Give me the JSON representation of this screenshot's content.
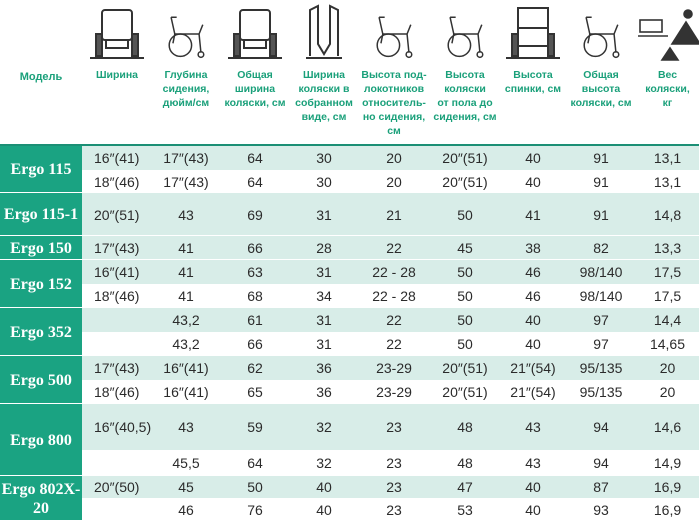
{
  "headers": [
    {
      "key": "model",
      "label": "Модель"
    },
    {
      "key": "width",
      "label": "Ширина",
      "icon": "seat-width-icon"
    },
    {
      "key": "depth",
      "label": "Глубина сидения, дюйм/см",
      "icon": "wheelchair-depth-icon"
    },
    {
      "key": "total_width",
      "label": "Общая ширина коляски, см",
      "icon": "wheelchair-total-width-icon"
    },
    {
      "key": "folded_width",
      "label": "Ширина коляски в собранном виде, см",
      "icon": "folded-wheelchair-icon"
    },
    {
      "key": "armrest_height",
      "label": "Высота подлокотников относительно сидения, см",
      "icon": "armrest-height-icon"
    },
    {
      "key": "seat_height",
      "label": "Высота коляски от пола до сидения, см",
      "icon": "seat-height-icon"
    },
    {
      "key": "back_height",
      "label": "Высота спинки, см",
      "icon": "backrest-height-icon"
    },
    {
      "key": "total_height",
      "label": "Общая высота коляски, см",
      "icon": "wheelchair-height-icon"
    },
    {
      "key": "weight",
      "label": "Вес коляски, кг",
      "icon": "scale-weight-icon"
    }
  ],
  "header_lines": {
    "model": [
      "Модель"
    ],
    "width": [
      "Ширина"
    ],
    "depth": [
      "Глубина",
      "сидения,",
      "дюйм/см"
    ],
    "total_width": [
      "Общая",
      "ширина",
      "коляски, см"
    ],
    "folded_width": [
      "Ширина",
      "коляски в",
      "собранном",
      "виде, см"
    ],
    "armrest_height": [
      "Высота под-",
      "локотников",
      "относитель-",
      "но сидения,",
      "см"
    ],
    "seat_height": [
      "Высота",
      "коляски",
      "от пола до",
      "сидения, см"
    ],
    "back_height": [
      "Высота",
      "спинки, см"
    ],
    "total_height": [
      "Общая",
      "высота",
      "коляски, см"
    ],
    "weight": [
      "Вес",
      "коляски,",
      "кг"
    ]
  },
  "groups": [
    {
      "model": "Ergo 115",
      "rows": [
        [
          "16″(41)",
          "17″(43)",
          "64",
          "30",
          "20",
          "20″(51)",
          "40",
          "91",
          "13,1"
        ],
        [
          "18″(46)",
          "17″(43)",
          "64",
          "30",
          "20",
          "20″(51)",
          "40",
          "91",
          "13,1"
        ]
      ]
    },
    {
      "model": "Ergo 115-1",
      "rows": [
        [
          "20″(51)",
          "43",
          "69",
          "31",
          "21",
          "50",
          "41",
          "91",
          "14,8"
        ]
      ]
    },
    {
      "model": "Ergo 150",
      "rows": [
        [
          "17″(43)",
          "41",
          "66",
          "28",
          "22",
          "45",
          "38",
          "82",
          "13,3"
        ]
      ]
    },
    {
      "model": "Ergo 152",
      "rows": [
        [
          "16″(41)",
          "41",
          "63",
          "31",
          "22 - 28",
          "50",
          "46",
          "98/140",
          "17,5"
        ],
        [
          "18″(46)",
          "41",
          "68",
          "34",
          "22 - 28",
          "50",
          "46",
          "98/140",
          "17,5"
        ]
      ]
    },
    {
      "model": "Ergo 352",
      "rows": [
        [
          "",
          "43,2",
          "61",
          "31",
          "22",
          "50",
          "40",
          "97",
          "14,4"
        ],
        [
          "",
          "43,2",
          "66",
          "31",
          "22",
          "50",
          "40",
          "97",
          "14,65"
        ]
      ]
    },
    {
      "model": "Ergo 500",
      "rows": [
        [
          "17″(43)",
          "16″(41)",
          "62",
          "36",
          "23-29",
          "20″(51)",
          "21″(54)",
          "95/135",
          "20"
        ],
        [
          "18″(46)",
          "16″(41)",
          "65",
          "36",
          "23-29",
          "20″(51)",
          "21″(54)",
          "95/135",
          "20"
        ]
      ]
    },
    {
      "model": "Ergo 800",
      "rows": [
        [
          "16″(40,5)",
          "43",
          "59",
          "32",
          "23",
          "48",
          "43",
          "94",
          "14,6"
        ],
        [
          "",
          "45,5",
          "64",
          "32",
          "23",
          "48",
          "43",
          "94",
          "14,9"
        ]
      ]
    },
    {
      "model": "Ergo 802X-20",
      "rows": [
        [
          "20″(50)",
          "45",
          "50",
          "40",
          "23",
          "47",
          "40",
          "87",
          "16,9"
        ],
        [
          "",
          "46",
          "76",
          "40",
          "23",
          "53",
          "40",
          "93",
          "16,9"
        ]
      ]
    }
  ],
  "colors": {
    "accent": "#1aa382",
    "header_text": "#1aa07a",
    "row_light": "#d8ede8",
    "row_white": "#ffffff"
  }
}
